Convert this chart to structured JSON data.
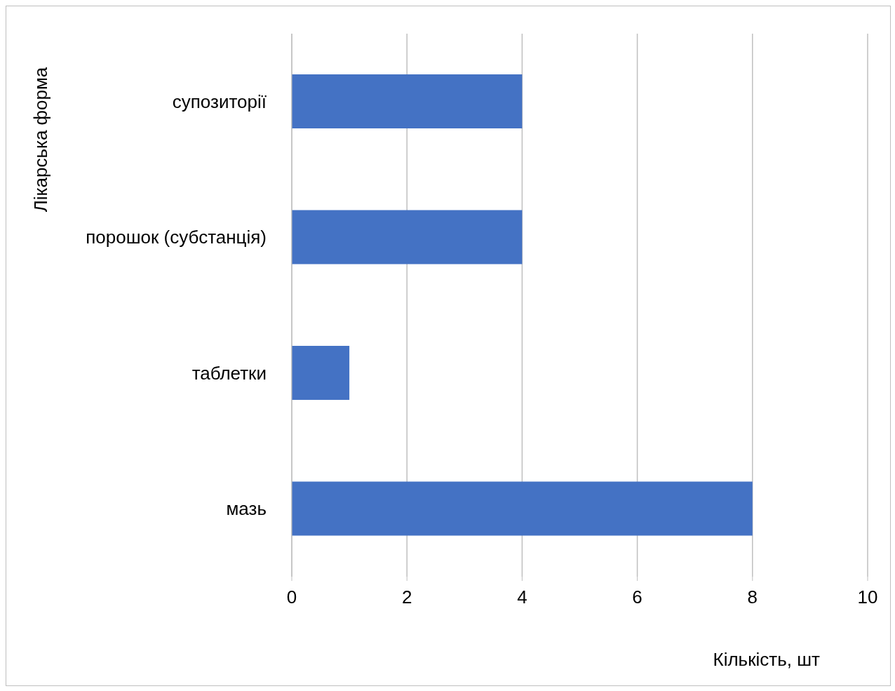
{
  "chart_data": {
    "type": "bar",
    "orientation": "horizontal",
    "xlabel": "Кількість, шт",
    "ylabel": "Лікарська форма",
    "categories": [
      "супозиторії",
      "порошок (субстанція)",
      "таблетки",
      "мазь"
    ],
    "values": [
      4,
      4,
      1,
      8
    ],
    "color": "#4472c4",
    "xlim": [
      0,
      10
    ],
    "xticks": [
      0,
      2,
      4,
      6,
      8,
      10
    ],
    "grid": "x"
  }
}
